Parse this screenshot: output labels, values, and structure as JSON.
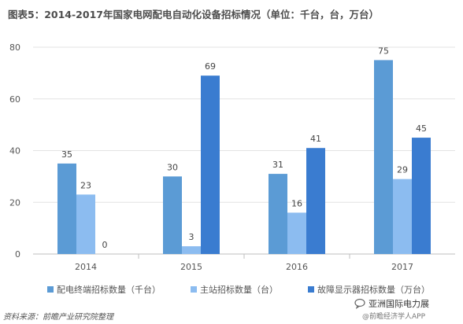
{
  "title": "图表5：2014-2017年国家电网配电自动化设备招标情况（单位：千台，台，万台）",
  "chart_data": {
    "type": "bar",
    "categories": [
      "2014",
      "2015",
      "2016",
      "2017"
    ],
    "series": [
      {
        "name": "配电终端招标数量（千台）",
        "values": [
          35,
          30,
          31,
          75
        ],
        "color": "#5b9bd5"
      },
      {
        "name": "主站招标数量（台）",
        "values": [
          23,
          3,
          16,
          29
        ],
        "color": "#8cbcf0"
      },
      {
        "name": "故障显示器招标数量（万台）",
        "values": [
          0,
          69,
          41,
          45
        ],
        "color": "#3a7cd0"
      }
    ],
    "yticks": [
      0,
      20,
      40,
      60,
      80
    ],
    "ylim": [
      0,
      80
    ],
    "grid": true,
    "legend_position": "bottom"
  },
  "source": "资料来源：前瞻产业研究院整理",
  "watermark": {
    "line1": "亚洲国际电力展",
    "line2": "@前瞻经济学人APP"
  }
}
